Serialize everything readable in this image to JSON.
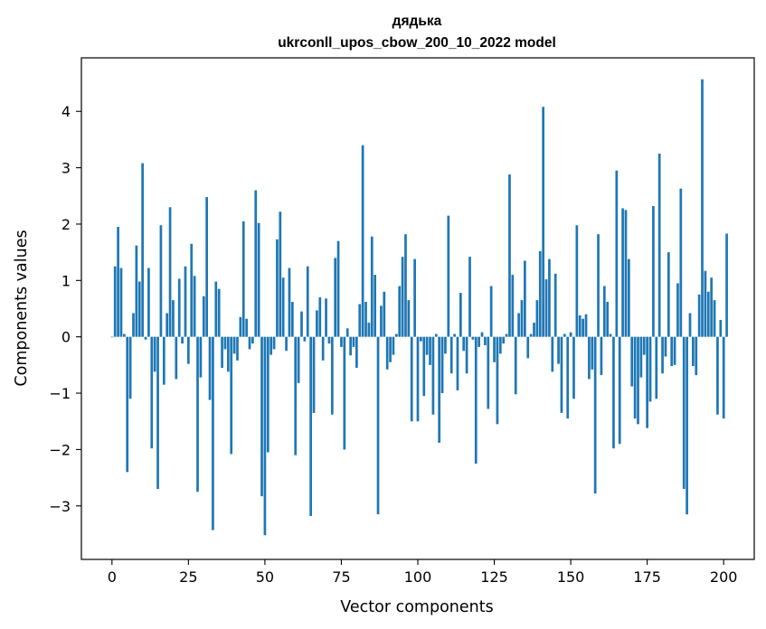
{
  "chart_data": {
    "type": "bar",
    "title": "дядька",
    "subtitle": "ukrconll_upos_cbow_200_10_2022 model",
    "xlabel": "Vector components",
    "ylabel": "Components values",
    "xlim": [
      -10,
      210
    ],
    "ylim": [
      -3.95,
      4.95
    ],
    "xticks": [
      0,
      25,
      50,
      75,
      100,
      125,
      150,
      175,
      200
    ],
    "yticks": [
      -3,
      -2,
      -1,
      0,
      1,
      2,
      3,
      4
    ],
    "bar_color": "#1f77b4",
    "grid": false,
    "values": [
      0.0,
      1.25,
      1.95,
      1.22,
      0.05,
      -2.4,
      -1.1,
      0.42,
      1.62,
      0.98,
      3.08,
      -0.05,
      1.22,
      -1.98,
      -0.62,
      -2.7,
      1.98,
      -0.85,
      0.42,
      2.3,
      0.65,
      -0.75,
      1.03,
      -0.12,
      1.25,
      -0.48,
      1.65,
      1.08,
      -2.75,
      -0.72,
      0.72,
      2.48,
      -1.12,
      -3.43,
      0.98,
      0.85,
      -0.55,
      -0.22,
      -0.62,
      -2.08,
      -0.3,
      -0.42,
      0.35,
      2.05,
      0.32,
      -0.22,
      -0.12,
      2.6,
      2.02,
      -2.83,
      -3.52,
      -2.05,
      -0.32,
      -0.22,
      1.73,
      2.22,
      1.05,
      -0.25,
      1.22,
      0.62,
      -2.1,
      -0.82,
      0.45,
      -0.08,
      1.25,
      -3.18,
      -1.35,
      0.47,
      0.7,
      -0.42,
      0.68,
      -0.12,
      -1.38,
      1.4,
      1.7,
      -0.18,
      -2.0,
      0.15,
      -0.33,
      -0.18,
      -0.55,
      0.58,
      3.4,
      0.62,
      0.25,
      1.78,
      1.1,
      -3.15,
      0.55,
      0.8,
      -0.58,
      -0.45,
      -0.32,
      0.05,
      0.9,
      1.42,
      1.82,
      0.65,
      -1.5,
      1.38,
      -1.5,
      -0.08,
      -1.05,
      -0.32,
      -0.5,
      -1.38,
      0.05,
      -1.88,
      -1.0,
      -0.3,
      2.15,
      -0.65,
      0.05,
      -0.95,
      0.78,
      -0.25,
      -0.65,
      1.42,
      -0.05,
      -2.25,
      -0.18,
      0.08,
      -0.15,
      -1.28,
      0.9,
      -0.45,
      -1.55,
      -0.3,
      -0.12,
      0.05,
      2.88,
      1.1,
      -1.02,
      0.42,
      0.65,
      1.35,
      -0.38,
      0.05,
      0.25,
      0.65,
      1.52,
      4.08,
      1.02,
      1.38,
      -0.62,
      1.12,
      -0.48,
      -1.35,
      0.05,
      -1.45,
      0.08,
      -1.1,
      1.98,
      0.38,
      0.32,
      0.4,
      -0.75,
      -0.58,
      -2.78,
      1.82,
      -0.68,
      0.9,
      0.62,
      0.05,
      -1.98,
      2.95,
      -1.9,
      2.28,
      2.25,
      1.38,
      -0.88,
      -1.45,
      -1.55,
      -0.72,
      -0.32,
      -1.62,
      -1.15,
      2.32,
      -1.1,
      3.25,
      -0.65,
      -0.35,
      1.5,
      -0.52,
      -0.5,
      0.95,
      2.63,
      -2.7,
      -3.15,
      0.42,
      -0.52,
      -0.68,
      0.75,
      4.57,
      1.17,
      0.8,
      1.05,
      0.65,
      -1.38,
      0.3,
      -1.45,
      1.83
    ]
  }
}
